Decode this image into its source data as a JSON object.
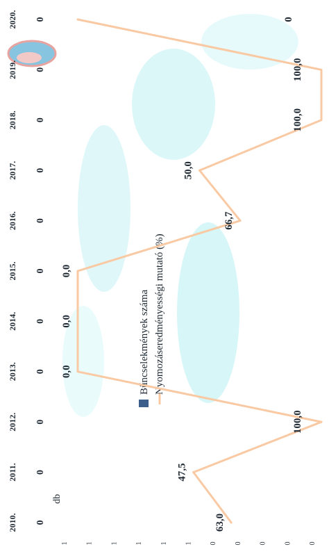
{
  "chart_data": {
    "type": "line",
    "orientation": "rotated-90-clockwise",
    "unit_label": "db",
    "categories": [
      "2010.",
      "2011.",
      "2012.",
      "2013.",
      "2014.",
      "2015.",
      "2016.",
      "2017.",
      "2018.",
      "2019.",
      "2020."
    ],
    "series": [
      {
        "name": "Bűncselekmények száma",
        "kind": "bar",
        "color": "#3b5f8a",
        "values": [
          0,
          0,
          0,
          0,
          0,
          0,
          0,
          0,
          0,
          0,
          0
        ],
        "labels": [
          "0",
          "0",
          "0",
          "0",
          "0",
          "0",
          "0",
          "0",
          "0",
          "0",
          "0"
        ]
      },
      {
        "name": "Nyomozáseredményességi mutató (%)",
        "kind": "line",
        "color": "#f9c9a3",
        "values": [
          63.0,
          47.5,
          100.0,
          0.0,
          0.0,
          0.0,
          66.7,
          50.0,
          100.0,
          100.0,
          0.0
        ],
        "labels": [
          "63,0",
          "47,5",
          "100,0",
          "0,0",
          "0,0",
          "0,0",
          "66,7",
          "50,0",
          "100,0",
          "100,0",
          "0"
        ]
      }
    ],
    "count_axis_ticks": [
      "0",
      "0",
      "0",
      "0",
      "0",
      "1",
      "1",
      "1",
      "1",
      "1",
      "1"
    ],
    "ylim": [
      0,
      100
    ],
    "legend_position": "top"
  }
}
